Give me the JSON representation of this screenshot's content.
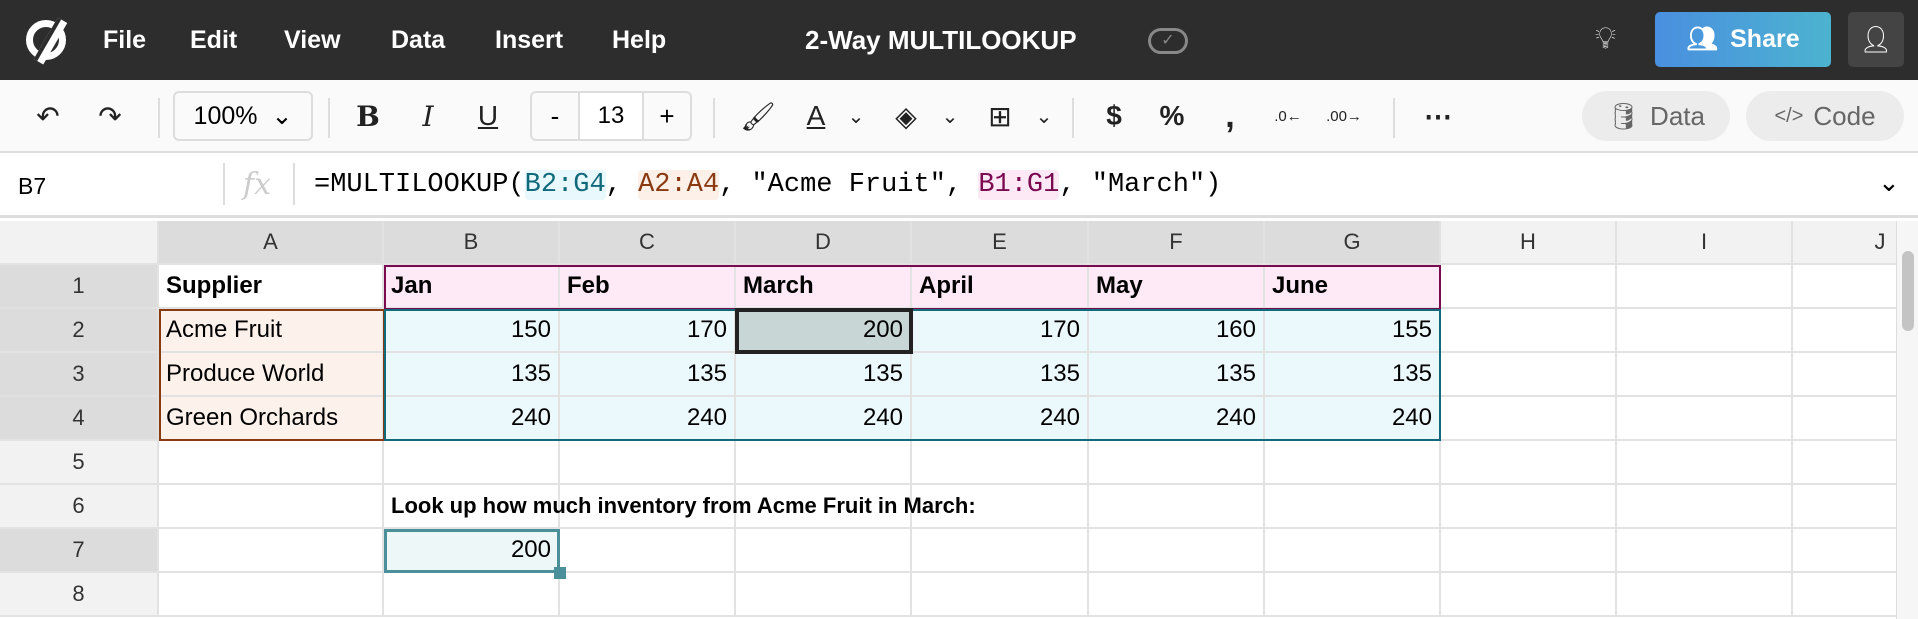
{
  "app": {
    "title": "2-Way MULTILOOKUP",
    "menu": [
      "File",
      "Edit",
      "View",
      "Data",
      "Insert",
      "Help"
    ],
    "share_label": "Share",
    "accent": "#4a9fe0"
  },
  "toolbar": {
    "zoom": "100%",
    "font_size": "13",
    "minus": "-",
    "plus": "+",
    "data_label": "Data",
    "code_label": "Code"
  },
  "formula_bar": {
    "cell_ref": "B7",
    "fx": "fx",
    "parts": [
      "=MULTILOOKUP(",
      "B2:G4",
      ", ",
      "A2:A4",
      ", \"Acme Fruit\", ",
      "B1:G1",
      ", \"March\")"
    ]
  },
  "sheet": {
    "columns": [
      "A",
      "B",
      "C",
      "D",
      "E",
      "F",
      "G",
      "H",
      "I",
      "J"
    ],
    "rows": [
      "1",
      "2",
      "3",
      "4",
      "5",
      "6",
      "7",
      "8"
    ],
    "cells": [
      [
        "Supplier",
        "Jan",
        "Feb",
        "March",
        "April",
        "May",
        "June"
      ],
      [
        "Acme Fruit",
        "150",
        "170",
        "200",
        "170",
        "160",
        "155"
      ],
      [
        "Produce World",
        "135",
        "135",
        "135",
        "135",
        "135",
        "135"
      ],
      [
        "Green Orchards",
        "240",
        "240",
        "240",
        "240",
        "240",
        "240"
      ]
    ],
    "note": "Look up how much inventory from Acme Fruit in March:",
    "result": "200",
    "selected_cell": "B7",
    "highlighted_cell": "D2"
  }
}
